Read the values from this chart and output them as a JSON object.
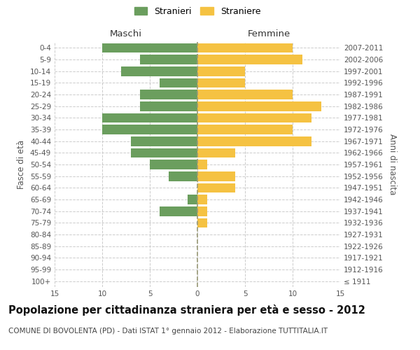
{
  "age_groups": [
    "100+",
    "95-99",
    "90-94",
    "85-89",
    "80-84",
    "75-79",
    "70-74",
    "65-69",
    "60-64",
    "55-59",
    "50-54",
    "45-49",
    "40-44",
    "35-39",
    "30-34",
    "25-29",
    "20-24",
    "15-19",
    "10-14",
    "5-9",
    "0-4"
  ],
  "birth_years": [
    "≤ 1911",
    "1912-1916",
    "1917-1921",
    "1922-1926",
    "1927-1931",
    "1932-1936",
    "1937-1941",
    "1942-1946",
    "1947-1951",
    "1952-1956",
    "1957-1961",
    "1962-1966",
    "1967-1971",
    "1972-1976",
    "1977-1981",
    "1982-1986",
    "1987-1991",
    "1992-1996",
    "1997-2001",
    "2002-2006",
    "2007-2011"
  ],
  "males": [
    0,
    0,
    0,
    0,
    0,
    0,
    4,
    1,
    0,
    3,
    5,
    7,
    7,
    10,
    10,
    6,
    6,
    4,
    8,
    6,
    10
  ],
  "females": [
    0,
    0,
    0,
    0,
    0,
    1,
    1,
    1,
    4,
    4,
    1,
    4,
    12,
    10,
    12,
    13,
    10,
    5,
    5,
    11,
    10
  ],
  "male_color": "#6b9e5e",
  "female_color": "#f5c242",
  "grid_color": "#cccccc",
  "background_color": "#ffffff",
  "bar_height": 0.82,
  "xlim": 15,
  "title": "Popolazione per cittadinanza straniera per età e sesso - 2012",
  "subtitle": "COMUNE DI BOVOLENTA (PD) - Dati ISTAT 1° gennaio 2012 - Elaborazione TUTTITALIA.IT",
  "ylabel_left": "Fasce di età",
  "ylabel_right": "Anni di nascita",
  "label_maschi": "Maschi",
  "label_femmine": "Femmine",
  "legend_stranieri": "Stranieri",
  "legend_straniere": "Straniere",
  "title_fontsize": 10.5,
  "subtitle_fontsize": 7.5,
  "axis_label_fontsize": 8.5,
  "tick_fontsize": 7.5,
  "legend_fontsize": 9
}
